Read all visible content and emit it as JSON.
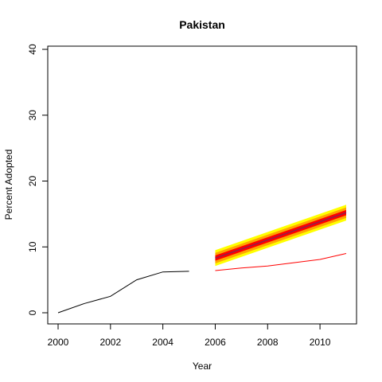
{
  "chart_data": {
    "type": "line",
    "title": "Pakistan",
    "xlabel": "Year",
    "ylabel": "Percent Adopted",
    "xlim": [
      2000,
      2011
    ],
    "ylim": [
      0,
      40
    ],
    "x_ticks": [
      2000,
      2002,
      2004,
      2006,
      2008,
      2010
    ],
    "y_ticks": [
      0,
      10,
      20,
      30,
      40
    ],
    "grid": false,
    "series": [
      {
        "role": "observed",
        "color": "#000000",
        "x": [
          2000,
          2001,
          2002,
          2003,
          2004,
          2005
        ],
        "y": [
          0.0,
          1.4,
          2.5,
          5.0,
          6.2,
          6.3
        ]
      },
      {
        "role": "forecast-lower",
        "color": "#ff0000",
        "x": [
          2006,
          2007,
          2008,
          2009,
          2010,
          2011
        ],
        "y": [
          6.4,
          6.8,
          7.1,
          7.6,
          8.1,
          9.0
        ]
      },
      {
        "role": "forecast-center",
        "color": "#8b2252",
        "x": [
          2006,
          2011
        ],
        "y": [
          8.3,
          15.2
        ]
      }
    ],
    "bands": [
      {
        "color": "#ffff00",
        "x": [
          2006,
          2011
        ],
        "lower": [
          7.1,
          14.0
        ],
        "upper": [
          9.5,
          16.4
        ]
      },
      {
        "color": "#ffa500",
        "x": [
          2006,
          2011
        ],
        "lower": [
          7.5,
          14.4
        ],
        "upper": [
          9.1,
          16.0
        ]
      },
      {
        "color": "#ff0000",
        "x": [
          2006,
          2011
        ],
        "lower": [
          7.9,
          14.8
        ],
        "upper": [
          8.7,
          15.6
        ]
      }
    ]
  }
}
